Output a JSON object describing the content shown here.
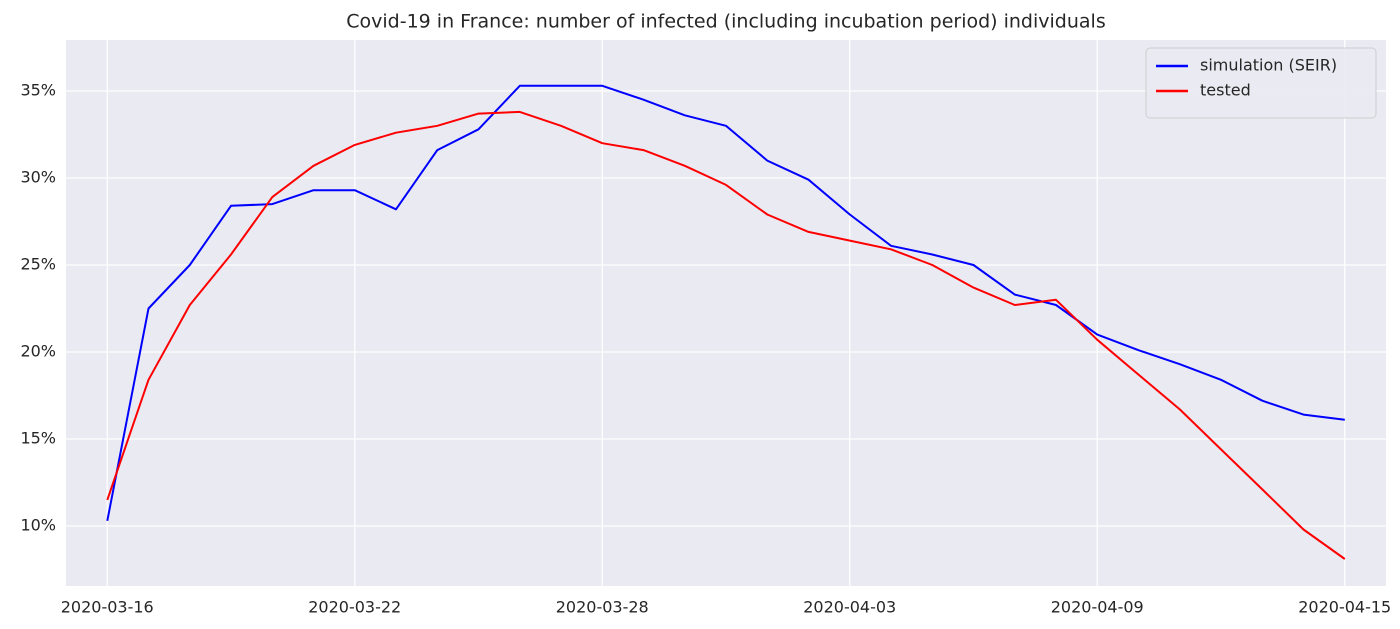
{
  "chart_data": {
    "type": "line",
    "title": "Covid-19 in France: number of infected (including incubation period) individuals",
    "x": [
      "2020-03-16",
      "2020-03-17",
      "2020-03-18",
      "2020-03-19",
      "2020-03-20",
      "2020-03-21",
      "2020-03-22",
      "2020-03-23",
      "2020-03-24",
      "2020-03-25",
      "2020-03-26",
      "2020-03-27",
      "2020-03-28",
      "2020-03-29",
      "2020-03-30",
      "2020-03-31",
      "2020-04-01",
      "2020-04-02",
      "2020-04-03",
      "2020-04-04",
      "2020-04-05",
      "2020-04-06",
      "2020-04-07",
      "2020-04-08",
      "2020-04-09",
      "2020-04-10",
      "2020-04-11",
      "2020-04-12",
      "2020-04-13",
      "2020-04-14",
      "2020-04-15"
    ],
    "series": [
      {
        "name": "simulation (SEIR)",
        "color": "#0000ff",
        "values": [
          10.3,
          22.5,
          25.0,
          28.4,
          28.5,
          29.3,
          29.3,
          28.2,
          31.6,
          32.8,
          35.3,
          35.3,
          35.3,
          34.5,
          33.6,
          33.0,
          31.0,
          29.9,
          27.9,
          26.1,
          25.6,
          25.0,
          23.3,
          22.7,
          21.0,
          20.1,
          19.3,
          18.4,
          17.2,
          16.4,
          16.1
        ]
      },
      {
        "name": "tested",
        "color": "#ff0000",
        "values": [
          11.5,
          18.4,
          22.7,
          25.6,
          28.9,
          30.7,
          31.9,
          32.6,
          33.0,
          33.7,
          33.8,
          33.0,
          32.0,
          31.6,
          30.7,
          29.6,
          27.9,
          26.9,
          26.4,
          25.9,
          25.0,
          23.7,
          22.7,
          23.0,
          20.7,
          18.7,
          16.7,
          14.4,
          12.1,
          9.8,
          8.1
        ]
      }
    ],
    "xlim": [
      "2020-03-15",
      "2020-04-16"
    ],
    "xticks": [
      "2020-03-16",
      "2020-03-22",
      "2020-03-28",
      "2020-04-03",
      "2020-04-09",
      "2020-04-15"
    ],
    "ylim": [
      6.55,
      37.93
    ],
    "yticks": [
      {
        "value": 10,
        "label": "10%"
      },
      {
        "value": 15,
        "label": "15%"
      },
      {
        "value": 20,
        "label": "20%"
      },
      {
        "value": 25,
        "label": "25%"
      },
      {
        "value": 30,
        "label": "30%"
      },
      {
        "value": 35,
        "label": "35%"
      }
    ],
    "grid": true,
    "legend": "upper right"
  }
}
